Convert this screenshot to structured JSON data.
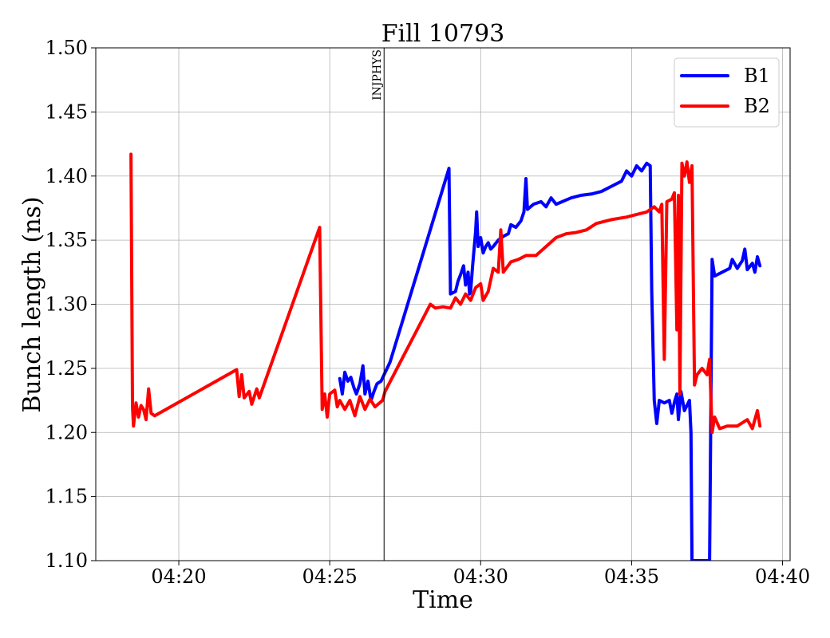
{
  "chart_data": {
    "type": "line",
    "title": "Fill 10793",
    "xlabel": "Time",
    "ylabel": "Bunch length (ns)",
    "xlim": [
      "04:17:15",
      "04:40:15"
    ],
    "ylim": [
      1.1,
      1.5
    ],
    "x_ticks": [
      "04:20",
      "04:25",
      "04:30",
      "04:35",
      "04:40"
    ],
    "y_ticks": [
      "1.10",
      "1.15",
      "1.20",
      "1.25",
      "1.30",
      "1.35",
      "1.40",
      "1.45",
      "1.50"
    ],
    "grid": true,
    "legend_position": "top-right",
    "annotations": [
      {
        "label": "INJPHYS",
        "x": "04:26:48",
        "type": "vertical-line"
      }
    ],
    "series": [
      {
        "name": "B1",
        "color": "#0000ff",
        "points": [
          [
            "04:25:20",
            1.242
          ],
          [
            "04:25:25",
            1.23
          ],
          [
            "04:25:30",
            1.247
          ],
          [
            "04:25:36",
            1.24
          ],
          [
            "04:25:42",
            1.243
          ],
          [
            "04:25:48",
            1.235
          ],
          [
            "04:25:53",
            1.23
          ],
          [
            "04:26:00",
            1.238
          ],
          [
            "04:26:06",
            1.252
          ],
          [
            "04:26:10",
            1.23
          ],
          [
            "04:26:16",
            1.24
          ],
          [
            "04:26:22",
            1.225
          ],
          [
            "04:26:28",
            1.232
          ],
          [
            "04:26:34",
            1.238
          ],
          [
            "04:26:42",
            1.24
          ],
          [
            "04:27:00",
            1.255
          ],
          [
            "04:28:57",
            1.406
          ],
          [
            "04:29:00",
            1.308
          ],
          [
            "04:29:10",
            1.31
          ],
          [
            "04:29:15",
            1.318
          ],
          [
            "04:29:20",
            1.323
          ],
          [
            "04:29:26",
            1.33
          ],
          [
            "04:29:30",
            1.315
          ],
          [
            "04:29:35",
            1.325
          ],
          [
            "04:29:38",
            1.308
          ],
          [
            "04:29:40",
            1.31
          ],
          [
            "04:29:44",
            1.33
          ],
          [
            "04:29:50",
            1.357
          ],
          [
            "04:29:52",
            1.372
          ],
          [
            "04:29:55",
            1.345
          ],
          [
            "04:30:00",
            1.352
          ],
          [
            "04:30:05",
            1.34
          ],
          [
            "04:30:10",
            1.345
          ],
          [
            "04:30:15",
            1.348
          ],
          [
            "04:30:20",
            1.343
          ],
          [
            "04:30:25",
            1.345
          ],
          [
            "04:30:35",
            1.35
          ],
          [
            "04:30:45",
            1.353
          ],
          [
            "04:30:55",
            1.355
          ],
          [
            "04:31:00",
            1.362
          ],
          [
            "04:31:10",
            1.36
          ],
          [
            "04:31:20",
            1.365
          ],
          [
            "04:31:26",
            1.372
          ],
          [
            "04:31:30",
            1.398
          ],
          [
            "04:31:33",
            1.374
          ],
          [
            "04:31:45",
            1.378
          ],
          [
            "04:32:00",
            1.38
          ],
          [
            "04:32:10",
            1.376
          ],
          [
            "04:32:20",
            1.383
          ],
          [
            "04:32:30",
            1.378
          ],
          [
            "04:33:00",
            1.383
          ],
          [
            "04:33:20",
            1.385
          ],
          [
            "04:33:40",
            1.386
          ],
          [
            "04:34:00",
            1.388
          ],
          [
            "04:34:20",
            1.392
          ],
          [
            "04:34:40",
            1.396
          ],
          [
            "04:34:50",
            1.404
          ],
          [
            "04:35:00",
            1.4
          ],
          [
            "04:35:10",
            1.408
          ],
          [
            "04:35:20",
            1.404
          ],
          [
            "04:35:30",
            1.41
          ],
          [
            "04:35:37",
            1.408
          ],
          [
            "04:35:40",
            1.31
          ],
          [
            "04:35:45",
            1.225
          ],
          [
            "04:35:50",
            1.207
          ],
          [
            "04:35:55",
            1.225
          ],
          [
            "04:36:05",
            1.223
          ],
          [
            "04:36:15",
            1.225
          ],
          [
            "04:36:20",
            1.215
          ],
          [
            "04:36:26",
            1.225
          ],
          [
            "04:36:30",
            1.23
          ],
          [
            "04:36:33",
            1.21
          ],
          [
            "04:36:38",
            1.232
          ],
          [
            "04:36:45",
            1.217
          ],
          [
            "04:36:55",
            1.225
          ],
          [
            "04:36:58",
            1.2
          ],
          [
            "04:37:00",
            1.1
          ],
          [
            "04:37:35",
            1.1
          ],
          [
            "04:37:40",
            1.335
          ],
          [
            "04:37:45",
            1.322
          ],
          [
            "04:38:00",
            1.325
          ],
          [
            "04:38:15",
            1.328
          ],
          [
            "04:38:20",
            1.335
          ],
          [
            "04:38:30",
            1.328
          ],
          [
            "04:38:40",
            1.334
          ],
          [
            "04:38:45",
            1.343
          ],
          [
            "04:38:50",
            1.327
          ],
          [
            "04:39:00",
            1.332
          ],
          [
            "04:39:05",
            1.325
          ],
          [
            "04:39:10",
            1.337
          ],
          [
            "04:39:15",
            1.33
          ]
        ]
      },
      {
        "name": "B2",
        "color": "#ff0000",
        "points": [
          [
            "04:18:25",
            1.417
          ],
          [
            "04:18:28",
            1.22
          ],
          [
            "04:18:30",
            1.205
          ],
          [
            "04:18:35",
            1.223
          ],
          [
            "04:18:40",
            1.212
          ],
          [
            "04:18:45",
            1.221
          ],
          [
            "04:18:50",
            1.218
          ],
          [
            "04:18:55",
            1.21
          ],
          [
            "04:19:00",
            1.234
          ],
          [
            "04:19:05",
            1.215
          ],
          [
            "04:19:12",
            1.213
          ],
          [
            "04:21:55",
            1.249
          ],
          [
            "04:22:00",
            1.228
          ],
          [
            "04:22:05",
            1.245
          ],
          [
            "04:22:10",
            1.227
          ],
          [
            "04:22:20",
            1.232
          ],
          [
            "04:22:25",
            1.222
          ],
          [
            "04:22:35",
            1.234
          ],
          [
            "04:22:40",
            1.227
          ],
          [
            "04:24:40",
            1.36
          ],
          [
            "04:24:45",
            1.218
          ],
          [
            "04:24:50",
            1.23
          ],
          [
            "04:24:55",
            1.212
          ],
          [
            "04:25:00",
            1.23
          ],
          [
            "04:25:10",
            1.233
          ],
          [
            "04:25:15",
            1.22
          ],
          [
            "04:25:20",
            1.225
          ],
          [
            "04:25:30",
            1.218
          ],
          [
            "04:25:40",
            1.225
          ],
          [
            "04:25:50",
            1.213
          ],
          [
            "04:26:00",
            1.228
          ],
          [
            "04:26:10",
            1.218
          ],
          [
            "04:26:20",
            1.226
          ],
          [
            "04:26:30",
            1.22
          ],
          [
            "04:26:45",
            1.225
          ],
          [
            "04:26:50",
            1.232
          ],
          [
            "04:28:20",
            1.3
          ],
          [
            "04:28:30",
            1.297
          ],
          [
            "04:28:45",
            1.298
          ],
          [
            "04:29:00",
            1.297
          ],
          [
            "04:29:10",
            1.305
          ],
          [
            "04:29:20",
            1.3
          ],
          [
            "04:29:30",
            1.308
          ],
          [
            "04:29:40",
            1.303
          ],
          [
            "04:29:50",
            1.313
          ],
          [
            "04:30:00",
            1.316
          ],
          [
            "04:30:05",
            1.303
          ],
          [
            "04:30:15",
            1.31
          ],
          [
            "04:30:25",
            1.328
          ],
          [
            "04:30:35",
            1.325
          ],
          [
            "04:30:40",
            1.358
          ],
          [
            "04:30:45",
            1.325
          ],
          [
            "04:31:00",
            1.333
          ],
          [
            "04:31:15",
            1.335
          ],
          [
            "04:31:30",
            1.338
          ],
          [
            "04:31:50",
            1.338
          ],
          [
            "04:32:10",
            1.345
          ],
          [
            "04:32:30",
            1.352
          ],
          [
            "04:32:50",
            1.355
          ],
          [
            "04:33:10",
            1.356
          ],
          [
            "04:33:30",
            1.358
          ],
          [
            "04:33:50",
            1.363
          ],
          [
            "04:34:20",
            1.366
          ],
          [
            "04:34:50",
            1.368
          ],
          [
            "04:35:10",
            1.37
          ],
          [
            "04:35:30",
            1.372
          ],
          [
            "04:35:45",
            1.376
          ],
          [
            "04:35:55",
            1.372
          ],
          [
            "04:36:00",
            1.378
          ],
          [
            "04:36:05",
            1.257
          ],
          [
            "04:36:10",
            1.38
          ],
          [
            "04:36:20",
            1.382
          ],
          [
            "04:36:25",
            1.387
          ],
          [
            "04:36:30",
            1.28
          ],
          [
            "04:36:33",
            1.385
          ],
          [
            "04:36:36",
            1.23
          ],
          [
            "04:36:40",
            1.41
          ],
          [
            "04:36:45",
            1.4
          ],
          [
            "04:36:50",
            1.411
          ],
          [
            "04:36:55",
            1.395
          ],
          [
            "04:37:00",
            1.408
          ],
          [
            "04:37:05",
            1.237
          ],
          [
            "04:37:10",
            1.245
          ],
          [
            "04:37:20",
            1.25
          ],
          [
            "04:37:30",
            1.245
          ],
          [
            "04:37:35",
            1.257
          ],
          [
            "04:37:40",
            1.2
          ],
          [
            "04:37:45",
            1.212
          ],
          [
            "04:37:55",
            1.203
          ],
          [
            "04:38:10",
            1.205
          ],
          [
            "04:38:30",
            1.205
          ],
          [
            "04:38:50",
            1.21
          ],
          [
            "04:39:00",
            1.203
          ],
          [
            "04:39:10",
            1.217
          ],
          [
            "04:39:15",
            1.205
          ]
        ]
      }
    ]
  }
}
